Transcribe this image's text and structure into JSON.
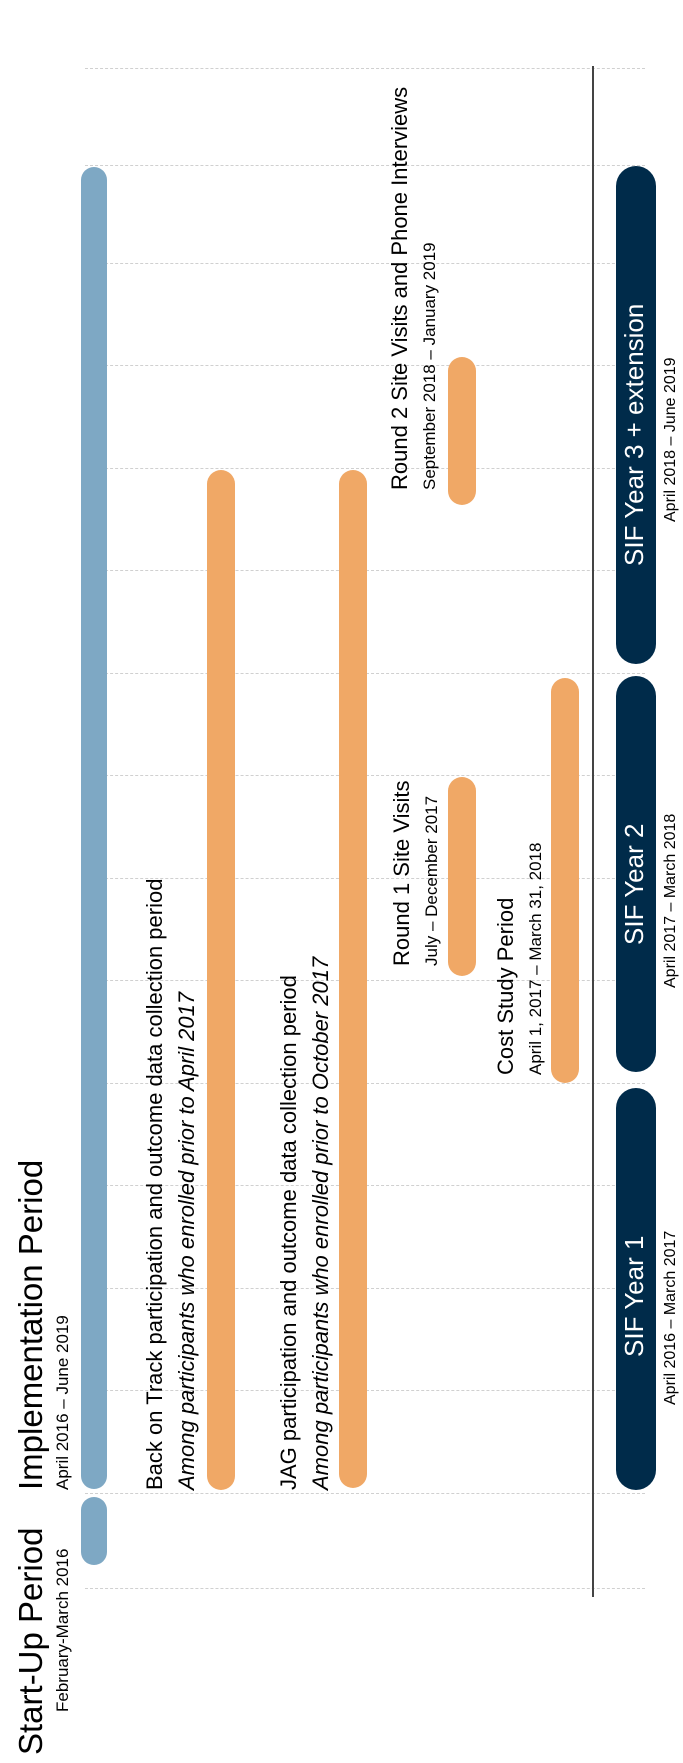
{
  "phases": [
    {
      "title": "Start-Up Period",
      "dates": "February-March 2016"
    },
    {
      "title": "Implementation Period",
      "dates": "April 2016 – June 2019"
    }
  ],
  "activities": {
    "back_on_track": {
      "title": "Back on Track participation and outcome data collection period",
      "subtitle": "Among participants who enrolled prior to April 2017"
    },
    "jag": {
      "title": "JAG participation and outcome data collection period",
      "subtitle": "Among participants who enrolled prior to October 2017"
    },
    "round1": {
      "title": "Round 1 Site Visits",
      "dates": "July – December 2017"
    },
    "round2": {
      "title": "Round 2 Site Visits and Phone Interviews",
      "dates": "September 2018 – January 2019"
    },
    "cost_study": {
      "title": "Cost Study Period",
      "dates": "April 1, 2017 – March 31, 2018"
    }
  },
  "years": [
    {
      "label": "SIF Year 1",
      "dates": "April 2016 – March 2017"
    },
    {
      "label": "SIF Year 2",
      "dates": "April 2017 – March 2018"
    },
    {
      "label": "SIF Year 3 + extension",
      "dates": "April 2018 – June 2019"
    }
  ],
  "colors": {
    "period_bar": "#7ea8c4",
    "activity_bar": "#f0a866",
    "year_bar": "#002b4a",
    "axis": "#444444"
  }
}
